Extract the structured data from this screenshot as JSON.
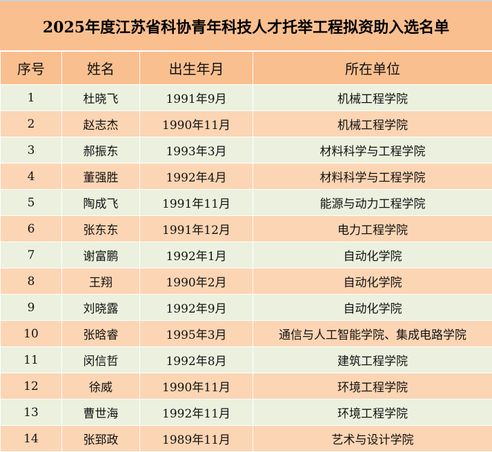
{
  "title": "2025年度江苏省科协青年科技人才托举工程拟资助入选名单",
  "headers": [
    "序号",
    "姓名",
    "出生年月",
    "所在单位"
  ],
  "rows": [
    [
      "1",
      "杜晓飞",
      "1991年9月",
      "机械工程学院"
    ],
    [
      "2",
      "赵志杰",
      "1990年11月",
      "机械工程学院"
    ],
    [
      "3",
      "郝振东",
      "1993年3月",
      "材料科学与工程学院"
    ],
    [
      "4",
      "董强胜",
      "1992年4月",
      "材料科学与工程学院"
    ],
    [
      "5",
      "陶成飞",
      "1991年11月",
      "能源与动力工程学院"
    ],
    [
      "6",
      "张东东",
      "1991年12月",
      "电力工程学院"
    ],
    [
      "7",
      "谢富鹏",
      "1992年1月",
      "自动化学院"
    ],
    [
      "8",
      "王翔",
      "1990年2月",
      "自动化学院"
    ],
    [
      "9",
      "刘晓露",
      "1992年9月",
      "自动化学院"
    ],
    [
      "10",
      "张晗睿",
      "1995年3月",
      "通信与人工智能学院、集成电路学院"
    ],
    [
      "11",
      "闵信哲",
      "1992年8月",
      "建筑工程学院"
    ],
    [
      "12",
      "徐威",
      "1990年11月",
      "环境工程学院"
    ],
    [
      "13",
      "曹世海",
      "1992年11月",
      "环境工程学院"
    ],
    [
      "14",
      "张郅政",
      "1989年11月",
      "艺术与设计学院"
    ]
  ],
  "colors": {
    "header": "#FABF8F",
    "row_green": "#EBF1DE",
    "row_peach": "#FCD5B4"
  }
}
